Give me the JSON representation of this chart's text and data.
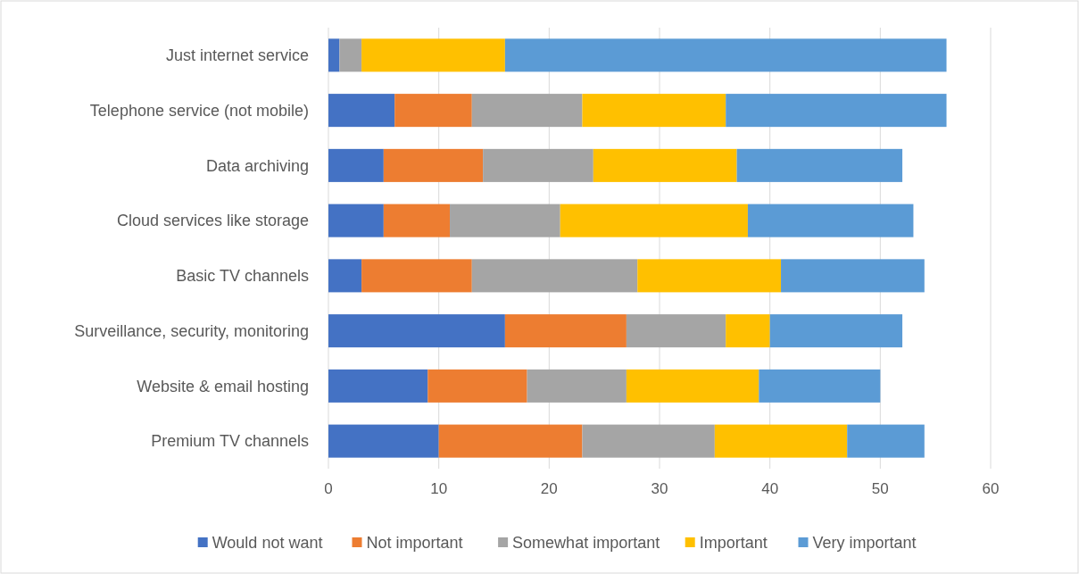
{
  "chart_data": {
    "type": "bar",
    "orientation": "horizontal",
    "stacked": true,
    "categories": [
      "Just internet service",
      "Telephone service (not mobile)",
      "Data archiving",
      "Cloud services like storage",
      "Basic TV channels",
      "Surveillance, security, monitoring",
      "Website & email hosting",
      "Premium TV channels"
    ],
    "series": [
      {
        "name": "Would not want",
        "color": "#4472c4",
        "values": [
          1,
          6,
          5,
          5,
          3,
          16,
          9,
          10
        ]
      },
      {
        "name": "Not important",
        "color": "#ed7d31",
        "values": [
          0,
          7,
          9,
          6,
          10,
          11,
          9,
          13
        ]
      },
      {
        "name": "Somewhat important",
        "color": "#a5a5a5",
        "values": [
          2,
          10,
          10,
          10,
          15,
          9,
          9,
          12
        ]
      },
      {
        "name": "Important",
        "color": "#ffc000",
        "values": [
          13,
          13,
          13,
          17,
          13,
          4,
          12,
          12
        ]
      },
      {
        "name": "Very important",
        "color": "#5b9bd5",
        "values": [
          40,
          20,
          15,
          15,
          13,
          12,
          11,
          7
        ]
      }
    ],
    "xlim": [
      0,
      60
    ],
    "xticks": [
      0,
      10,
      20,
      30,
      40,
      50,
      60
    ],
    "grid": "x",
    "legend": "bottom"
  }
}
